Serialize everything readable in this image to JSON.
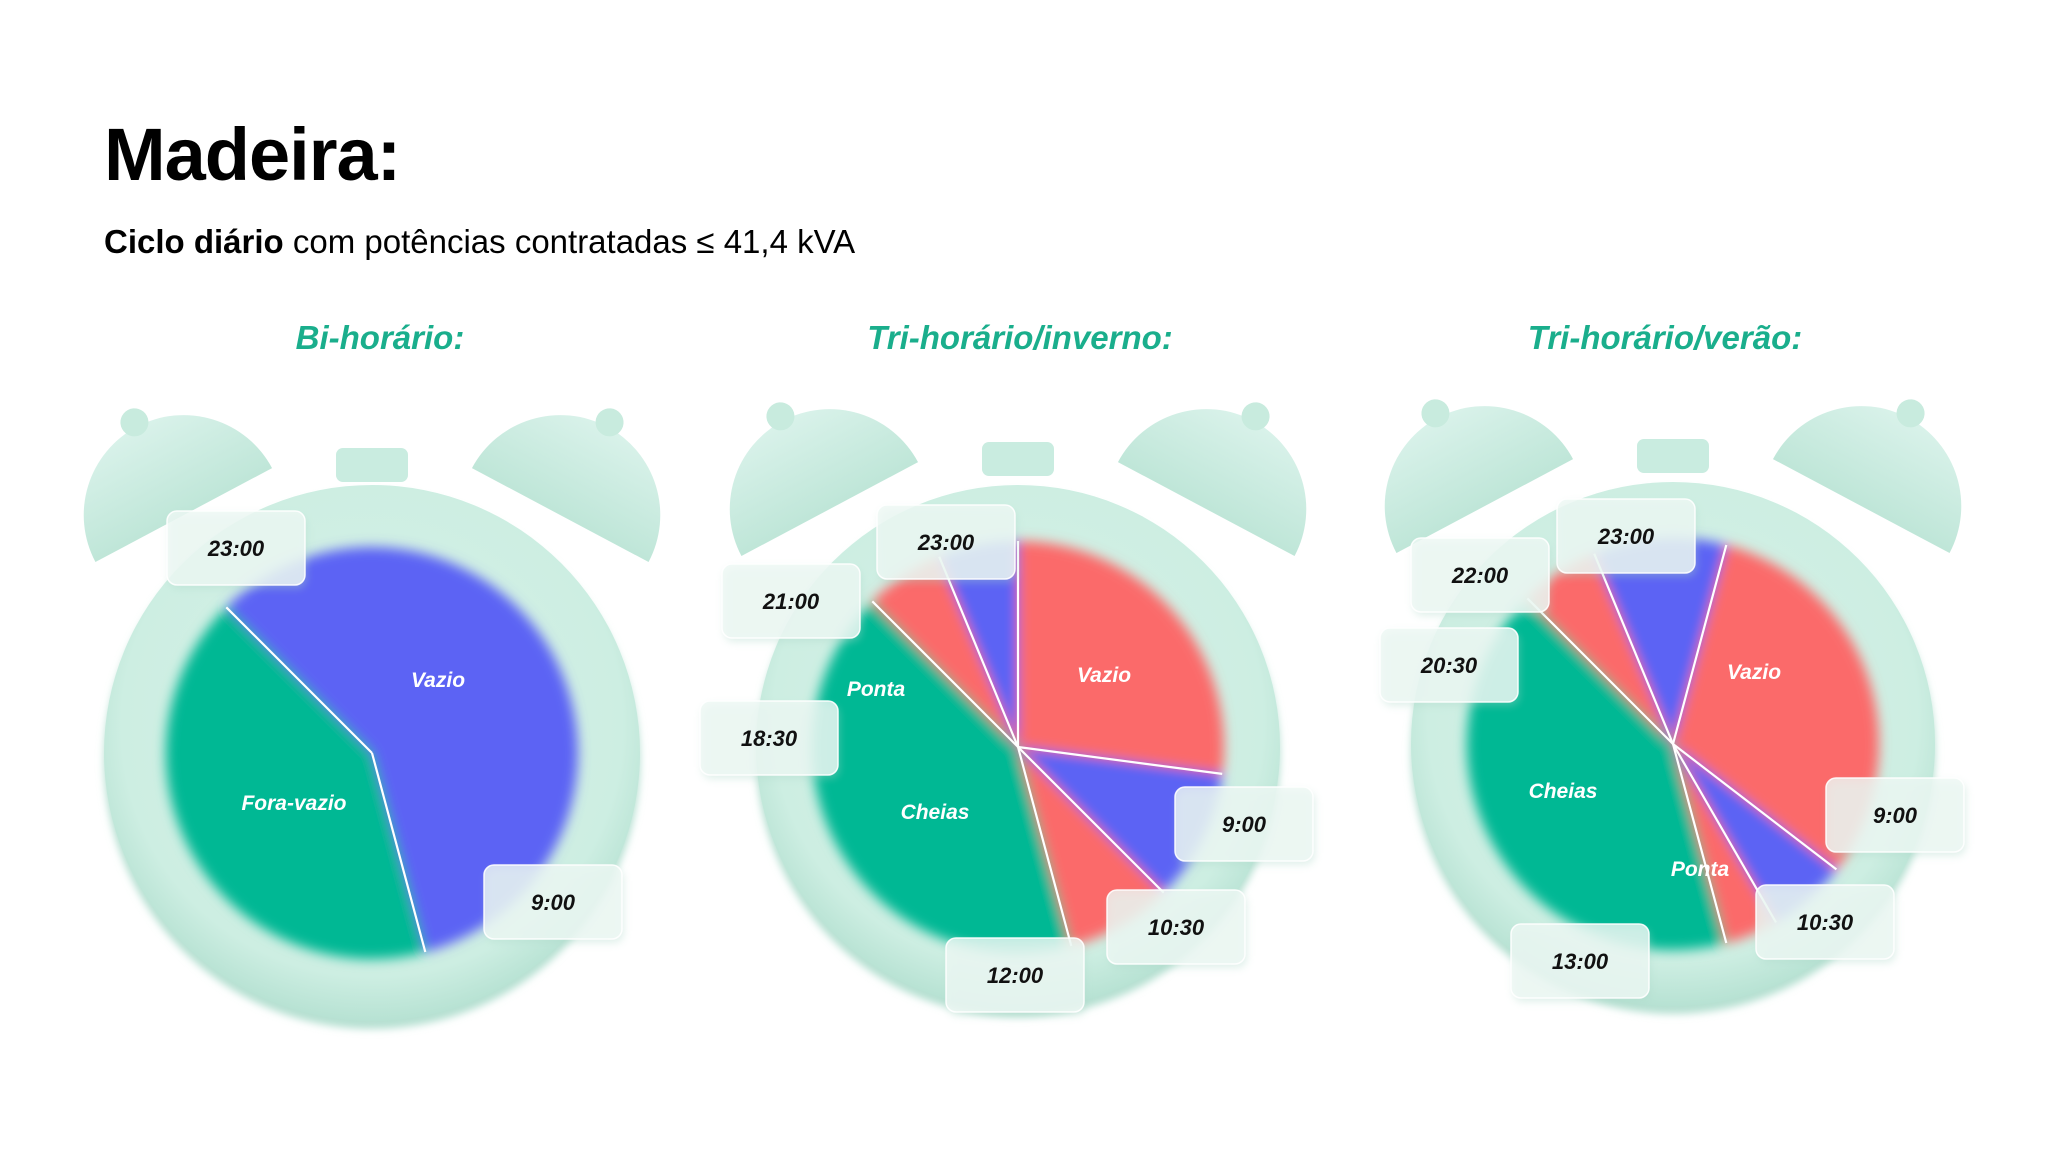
{
  "header": {
    "title": "Madeira:",
    "subtitle_bold": "Ciclo diário",
    "subtitle_rest": " com potências contratadas ≤ 41,4 kVA"
  },
  "colors": {
    "vazio": "#05b894",
    "ponta": "#5b63f4",
    "cheias": "#fb6b6b",
    "clock_body": "#cfeee3",
    "title_green": "#1aae8c"
  },
  "chart_data": [
    {
      "type": "pie",
      "title": "Bi-horário:",
      "cycle_hours": 24,
      "slices": [
        {
          "label": "Vazio",
          "start": "23:00",
          "end": "9:00",
          "color": "#05b894"
        },
        {
          "label": "Fora-vazio",
          "start": "9:00",
          "end": "23:00",
          "color": "#5b63f4"
        }
      ],
      "time_labels": [
        "23:00",
        "9:00"
      ]
    },
    {
      "type": "pie",
      "title": "Tri-horário/inverno:",
      "cycle_hours": 24,
      "slices": [
        {
          "label": "Vazio",
          "start": "23:00",
          "end": "9:00",
          "color": "#05b894"
        },
        {
          "label": "",
          "start": "9:00",
          "end": "10:30",
          "color": "#fb6b6b"
        },
        {
          "label": "",
          "start": "10:30",
          "end": "12:00",
          "color": "#5b63f4"
        },
        {
          "label": "Cheias",
          "start": "12:00",
          "end": "18:30",
          "color": "#fb6b6b"
        },
        {
          "label": "Ponta",
          "start": "18:30",
          "end": "21:00",
          "color": "#5b63f4"
        },
        {
          "label": "",
          "start": "21:00",
          "end": "23:00",
          "color": "#fb6b6b"
        }
      ],
      "time_labels": [
        "23:00",
        "21:00",
        "18:30",
        "9:00",
        "10:30",
        "12:00"
      ]
    },
    {
      "type": "pie",
      "title": "Tri-horário/verão:",
      "cycle_hours": 24,
      "slices": [
        {
          "label": "Vazio",
          "start": "23:00",
          "end": "9:00",
          "color": "#05b894"
        },
        {
          "label": "",
          "start": "9:00",
          "end": "10:30",
          "color": "#fb6b6b"
        },
        {
          "label": "Ponta",
          "start": "10:30",
          "end": "13:00",
          "color": "#5b63f4"
        },
        {
          "label": "Cheias",
          "start": "13:00",
          "end": "20:30",
          "color": "#fb6b6b"
        },
        {
          "label": "",
          "start": "20:30",
          "end": "22:00",
          "color": "#5b63f4"
        },
        {
          "label": "",
          "start": "22:00",
          "end": "23:00",
          "color": "#fb6b6b"
        }
      ],
      "time_labels": [
        "23:00",
        "22:00",
        "20:30",
        "9:00",
        "10:30",
        "13:00"
      ]
    }
  ]
}
